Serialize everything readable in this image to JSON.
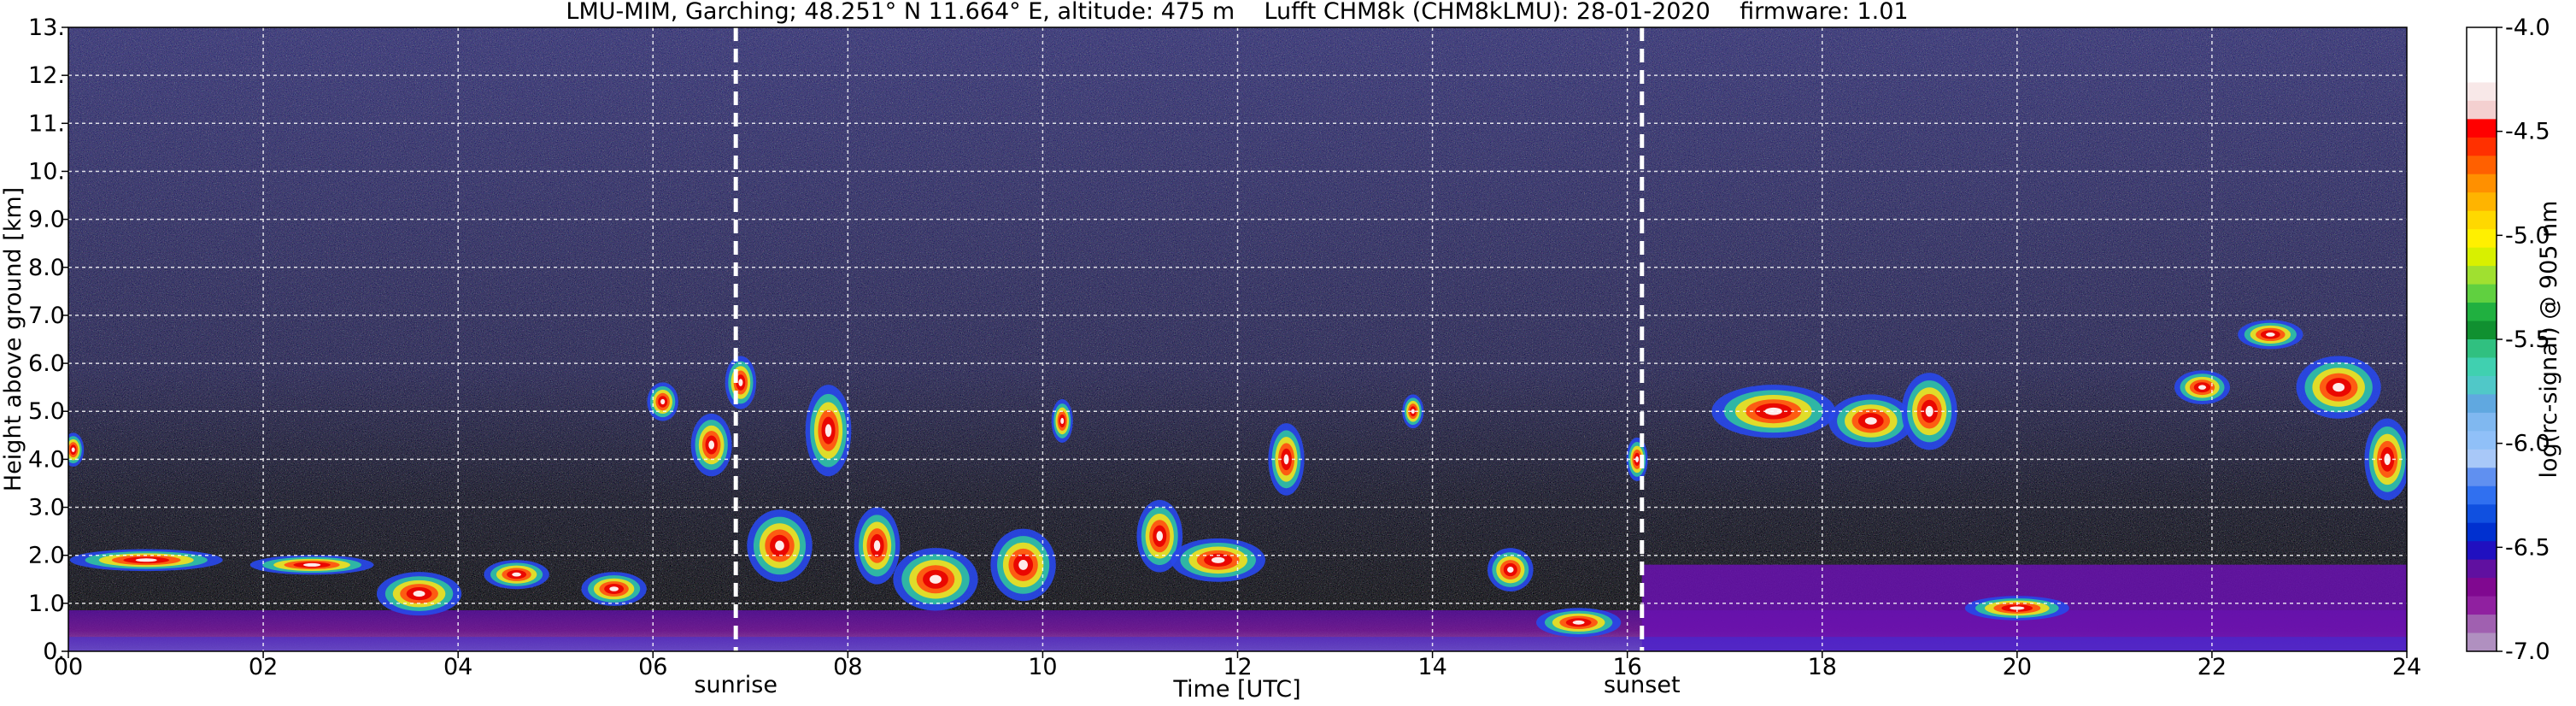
{
  "chart_data": {
    "type": "heatmap",
    "title": "LMU-MIM, Garching; 48.251° N 11.664° E, altitude: 475 m    Lufft CHM8k (CHM8kLMU): 28-01-2020    firmware: 1.01",
    "xlabel": "Time [UTC]",
    "ylabel": "Height above ground [km]",
    "colorbar_label": "log(rc-signal) @ 905 nm",
    "xlim": [
      0,
      24
    ],
    "ylim": [
      0,
      13
    ],
    "clim": [
      -7.0,
      -4.0
    ],
    "x_ticks": [
      "00",
      "02",
      "04",
      "06",
      "08",
      "10",
      "12",
      "14",
      "16",
      "18",
      "20",
      "22",
      "24"
    ],
    "y_ticks": [
      "0.",
      "1.0",
      "2.0",
      "3.0",
      "4.0",
      "5.0",
      "6.0",
      "7.0",
      "8.0",
      "9.0",
      "10.",
      "11.",
      "12.",
      "13."
    ],
    "colorbar_ticks": [
      "-4.0",
      "-4.5",
      "-5.0",
      "-5.5",
      "-6.0",
      "-6.5",
      "-7.0"
    ],
    "grid": true,
    "annotations": [
      {
        "label": "sunrise",
        "time": 6.85
      },
      {
        "label": "sunset",
        "time": 16.15
      }
    ],
    "colorbar_colors": [
      "#ffffff",
      "#ffffff",
      "#ffffff",
      "#f8e8e8",
      "#f4d0d0",
      "#ff0000",
      "#ff3000",
      "#ff6000",
      "#ff9000",
      "#ffb400",
      "#ffd800",
      "#fff000",
      "#d8f000",
      "#a0e030",
      "#60d040",
      "#20b040",
      "#109030",
      "#30c080",
      "#40d0b0",
      "#50c8c8",
      "#60a8e0",
      "#80b8f0",
      "#90c0f8",
      "#a8c8f8",
      "#6090f0",
      "#3070f0",
      "#1050e0",
      "#0030d0",
      "#2010c0",
      "#6010a0",
      "#800890",
      "#9020a0",
      "#a060b0",
      "#b090c0"
    ],
    "layers": [
      {
        "name": "noise-region",
        "t0": 0,
        "t1": 24,
        "h0": 0,
        "h1": 13
      },
      {
        "name": "aerosol-layer",
        "t0": 0,
        "t1": 24,
        "h0": 0,
        "h1": 1.9
      }
    ],
    "cloud_features": [
      {
        "t": 0.05,
        "h": 4.2,
        "dt": 0.15,
        "dh": 0.6
      },
      {
        "t": 0.8,
        "h": 1.9,
        "dt": 1.5,
        "dh": 0.35
      },
      {
        "t": 2.5,
        "h": 1.8,
        "dt": 1.2,
        "dh": 0.3
      },
      {
        "t": 3.6,
        "h": 1.2,
        "dt": 0.8,
        "dh": 0.8
      },
      {
        "t": 4.6,
        "h": 1.6,
        "dt": 0.6,
        "dh": 0.5
      },
      {
        "t": 5.6,
        "h": 1.3,
        "dt": 0.6,
        "dh": 0.6
      },
      {
        "t": 6.1,
        "h": 5.2,
        "dt": 0.25,
        "dh": 0.7
      },
      {
        "t": 6.6,
        "h": 4.3,
        "dt": 0.35,
        "dh": 1.2
      },
      {
        "t": 6.9,
        "h": 5.6,
        "dt": 0.25,
        "dh": 1.0
      },
      {
        "t": 7.3,
        "h": 2.2,
        "dt": 0.6,
        "dh": 1.4
      },
      {
        "t": 7.8,
        "h": 4.6,
        "dt": 0.4,
        "dh": 1.8
      },
      {
        "t": 8.3,
        "h": 2.2,
        "dt": 0.4,
        "dh": 1.5
      },
      {
        "t": 8.9,
        "h": 1.5,
        "dt": 0.8,
        "dh": 1.2
      },
      {
        "t": 9.8,
        "h": 1.8,
        "dt": 0.6,
        "dh": 1.4
      },
      {
        "t": 10.2,
        "h": 4.8,
        "dt": 0.15,
        "dh": 0.8
      },
      {
        "t": 11.2,
        "h": 2.4,
        "dt": 0.4,
        "dh": 1.4
      },
      {
        "t": 11.8,
        "h": 1.9,
        "dt": 0.9,
        "dh": 0.8
      },
      {
        "t": 12.5,
        "h": 4.0,
        "dt": 0.3,
        "dh": 1.4
      },
      {
        "t": 13.8,
        "h": 5.0,
        "dt": 0.15,
        "dh": 0.6
      },
      {
        "t": 14.8,
        "h": 1.7,
        "dt": 0.4,
        "dh": 0.8
      },
      {
        "t": 15.5,
        "h": 0.6,
        "dt": 0.8,
        "dh": 0.5
      },
      {
        "t": 16.1,
        "h": 4.0,
        "dt": 0.15,
        "dh": 0.8
      },
      {
        "t": 17.5,
        "h": 5.0,
        "dt": 1.2,
        "dh": 1.0
      },
      {
        "t": 18.5,
        "h": 4.8,
        "dt": 0.8,
        "dh": 1.0
      },
      {
        "t": 19.1,
        "h": 5.0,
        "dt": 0.5,
        "dh": 1.5
      },
      {
        "t": 20.0,
        "h": 0.9,
        "dt": 1.0,
        "dh": 0.4
      },
      {
        "t": 21.9,
        "h": 5.5,
        "dt": 0.5,
        "dh": 0.6
      },
      {
        "t": 22.6,
        "h": 6.6,
        "dt": 0.6,
        "dh": 0.5
      },
      {
        "t": 23.3,
        "h": 5.5,
        "dt": 0.8,
        "dh": 1.2
      },
      {
        "t": 23.8,
        "h": 4.0,
        "dt": 0.4,
        "dh": 1.6
      }
    ]
  }
}
